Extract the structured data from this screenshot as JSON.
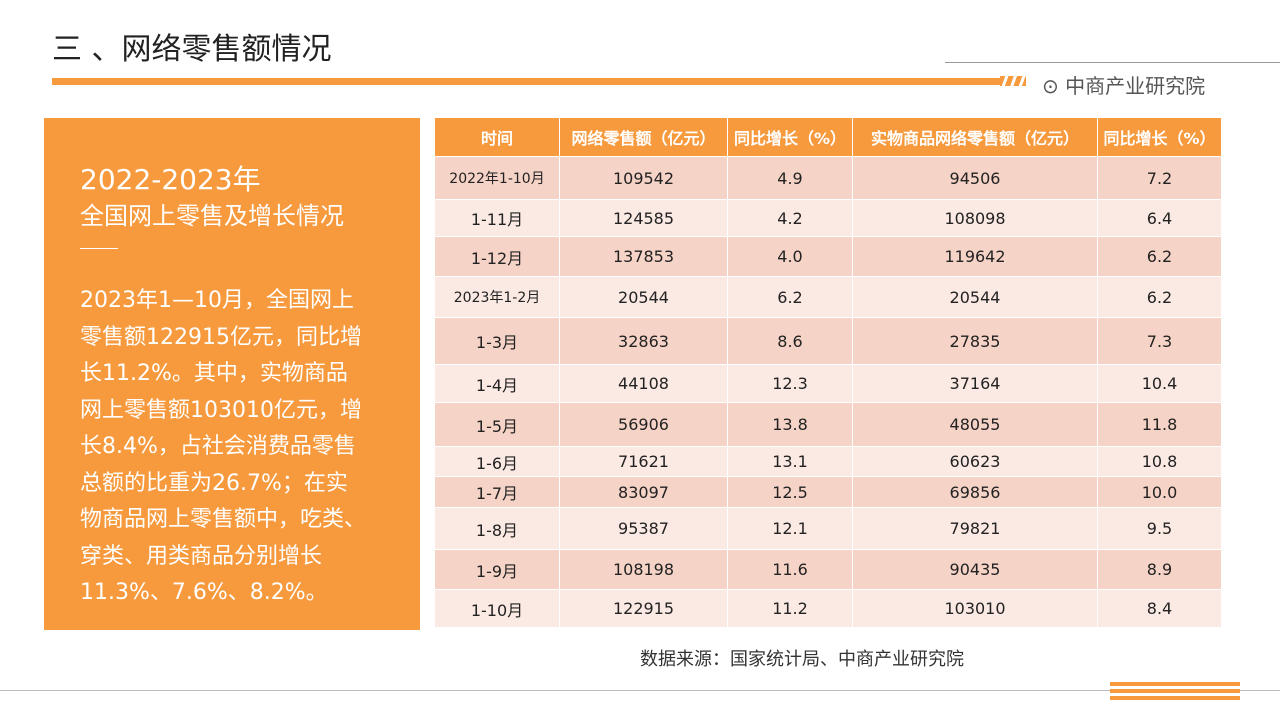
{
  "header": {
    "title": "三 、网络零售额情况",
    "logo": "中商产业研究院"
  },
  "panel": {
    "heading": "2022-2023年",
    "subheading": "全国网上零售及增长情况",
    "body": [
      "2023年1—10月，全国网上",
      "零售额122915亿元，同比增",
      "长11.2%。其中，实物商品",
      "网上零售额103010亿元，增",
      "长8.4%，占社会消费品零售",
      "总额的比重为26.7%；在实",
      "物商品网上零售额中，吃类、",
      "穿类、用类商品分别增长",
      "11.3%、7.6%、8.2%。"
    ]
  },
  "table": {
    "columns": [
      "时间",
      "网络零售额（亿元）",
      "同比增长（%）",
      "实物商品网络零售额（亿元）",
      "同比增长（%）"
    ],
    "rows": [
      [
        "2022年1-10月",
        "109542",
        "4.9",
        "94506",
        "7.2"
      ],
      [
        "1-11月",
        "124585",
        "4.2",
        "108098",
        "6.4"
      ],
      [
        "1-12月",
        "137853",
        "4.0",
        "119642",
        "6.2"
      ],
      [
        "2023年1-2月",
        "20544",
        "6.2",
        "20544",
        "6.2"
      ],
      [
        "1-3月",
        "32863",
        "8.6",
        "27835",
        "7.3"
      ],
      [
        "1-4月",
        "44108",
        "12.3",
        "37164",
        "10.4"
      ],
      [
        "1-5月",
        "56906",
        "13.8",
        "48055",
        "11.8"
      ],
      [
        "1-6月",
        "71621",
        "13.1",
        "60623",
        "10.8"
      ],
      [
        "1-7月",
        "83097",
        "12.5",
        "69856",
        "10.0"
      ],
      [
        "1-8月",
        "95387",
        "12.1",
        "79821",
        "9.5"
      ],
      [
        "1-9月",
        "108198",
        "11.6",
        "90435",
        "8.9"
      ],
      [
        "1-10月",
        "122915",
        "11.2",
        "103010",
        "8.4"
      ]
    ]
  },
  "source": "数据来源：国家统计局、中商产业研究院"
}
